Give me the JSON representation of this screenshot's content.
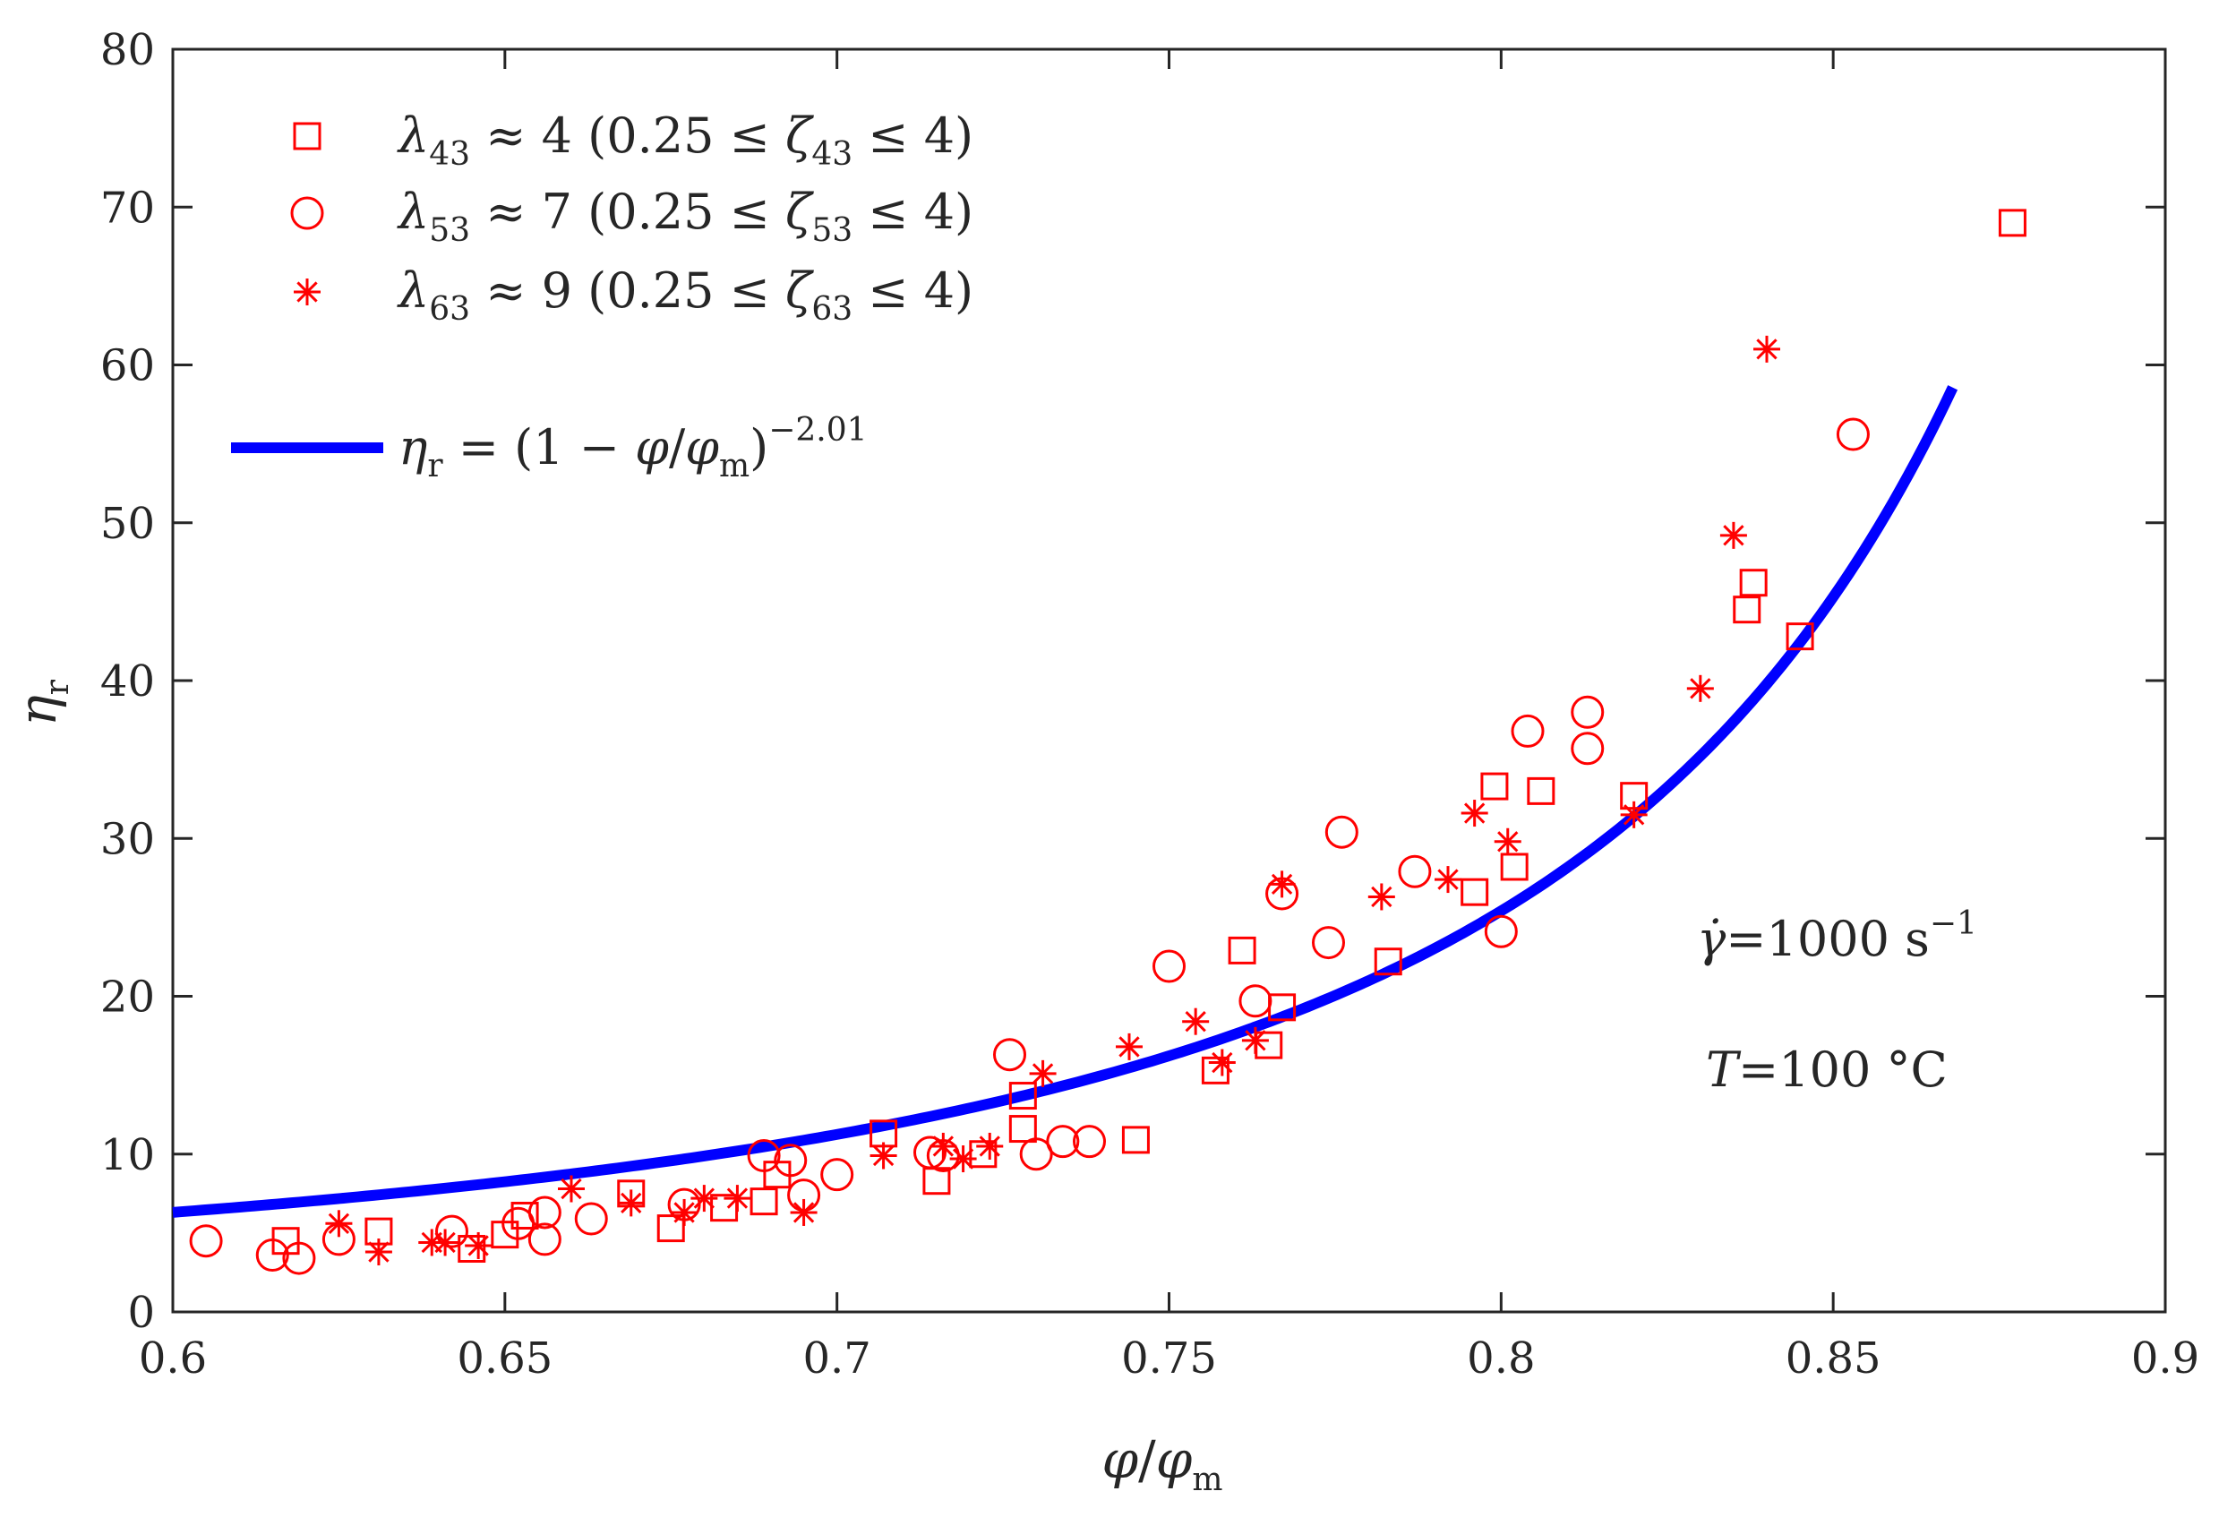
{
  "chart_data": {
    "type": "scatter",
    "xlabel": "φ/φm",
    "ylabel": "ηr",
    "xlim": [
      0.6,
      0.9
    ],
    "ylim": [
      0,
      80
    ],
    "xticks": [
      0.6,
      0.65,
      0.7,
      0.75,
      0.8,
      0.85,
      0.9
    ],
    "yticks": [
      0,
      10,
      20,
      30,
      40,
      50,
      60,
      70,
      80
    ],
    "xtick_labels": [
      "0.6",
      "0.65",
      "0.7",
      "0.75",
      "0.8",
      "0.85",
      "0.9"
    ],
    "ytick_labels": [
      "0",
      "10",
      "20",
      "30",
      "40",
      "50",
      "60",
      "70",
      "80"
    ],
    "grid": false,
    "legend_position": "top-left",
    "colors": {
      "markers": "#ff0000",
      "fit_line": "#0000ff",
      "axes": "#262626"
    },
    "series": [
      {
        "name": "λ43 ≈ 4 (0.25 ≤ ζ43 ≤ 4)",
        "marker": "square",
        "points": [
          [
            0.617,
            4.5
          ],
          [
            0.631,
            5.1
          ],
          [
            0.645,
            4.0
          ],
          [
            0.65,
            4.9
          ],
          [
            0.653,
            6.1
          ],
          [
            0.669,
            7.5
          ],
          [
            0.675,
            5.3
          ],
          [
            0.683,
            6.6
          ],
          [
            0.689,
            7.0
          ],
          [
            0.691,
            8.7
          ],
          [
            0.707,
            11.3
          ],
          [
            0.715,
            8.3
          ],
          [
            0.722,
            10.0
          ],
          [
            0.728,
            13.7
          ],
          [
            0.728,
            11.6
          ],
          [
            0.745,
            10.9
          ],
          [
            0.757,
            15.3
          ],
          [
            0.761,
            22.9
          ],
          [
            0.765,
            16.9
          ],
          [
            0.767,
            19.3
          ],
          [
            0.783,
            22.2
          ],
          [
            0.796,
            26.6
          ],
          [
            0.799,
            33.3
          ],
          [
            0.802,
            28.2
          ],
          [
            0.806,
            33.0
          ],
          [
            0.82,
            32.7
          ],
          [
            0.837,
            44.5
          ],
          [
            0.838,
            46.2
          ],
          [
            0.845,
            42.8
          ],
          [
            0.877,
            69.0
          ]
        ]
      },
      {
        "name": "λ53 ≈ 7 (0.25 ≤ ζ53 ≤ 4)",
        "marker": "circle",
        "points": [
          [
            0.605,
            4.5
          ],
          [
            0.615,
            3.6
          ],
          [
            0.619,
            3.4
          ],
          [
            0.625,
            4.6
          ],
          [
            0.642,
            5.1
          ],
          [
            0.652,
            5.6
          ],
          [
            0.656,
            4.6
          ],
          [
            0.656,
            6.3
          ],
          [
            0.663,
            5.9
          ],
          [
            0.677,
            6.8
          ],
          [
            0.689,
            9.9
          ],
          [
            0.693,
            9.6
          ],
          [
            0.695,
            7.4
          ],
          [
            0.7,
            8.7
          ],
          [
            0.714,
            10.1
          ],
          [
            0.716,
            9.9
          ],
          [
            0.726,
            16.3
          ],
          [
            0.73,
            10.0
          ],
          [
            0.734,
            10.8
          ],
          [
            0.738,
            10.8
          ],
          [
            0.75,
            21.9
          ],
          [
            0.763,
            19.7
          ],
          [
            0.767,
            26.5
          ],
          [
            0.774,
            23.4
          ],
          [
            0.776,
            30.4
          ],
          [
            0.787,
            27.9
          ],
          [
            0.8,
            24.1
          ],
          [
            0.804,
            36.8
          ],
          [
            0.813,
            38.0
          ],
          [
            0.813,
            35.7
          ],
          [
            0.853,
            55.6
          ]
        ]
      },
      {
        "name": "λ63 ≈ 9 (0.25 ≤ ζ63 ≤ 4)",
        "marker": "asterisk",
        "points": [
          [
            0.625,
            5.6
          ],
          [
            0.631,
            3.8
          ],
          [
            0.639,
            4.4
          ],
          [
            0.641,
            4.4
          ],
          [
            0.646,
            4.2
          ],
          [
            0.66,
            7.8
          ],
          [
            0.669,
            6.9
          ],
          [
            0.677,
            6.3
          ],
          [
            0.68,
            7.2
          ],
          [
            0.685,
            7.2
          ],
          [
            0.695,
            6.3
          ],
          [
            0.707,
            9.9
          ],
          [
            0.716,
            10.5
          ],
          [
            0.719,
            9.7
          ],
          [
            0.723,
            10.5
          ],
          [
            0.731,
            15.1
          ],
          [
            0.744,
            16.8
          ],
          [
            0.754,
            18.4
          ],
          [
            0.758,
            15.8
          ],
          [
            0.763,
            17.2
          ],
          [
            0.767,
            27.1
          ],
          [
            0.782,
            26.3
          ],
          [
            0.792,
            27.4
          ],
          [
            0.796,
            31.6
          ],
          [
            0.801,
            29.8
          ],
          [
            0.82,
            31.5
          ],
          [
            0.83,
            39.5
          ],
          [
            0.835,
            49.2
          ],
          [
            0.84,
            61.0
          ]
        ]
      }
    ],
    "fit": {
      "name": "ηr = (1 − φ/φm)^−2.01",
      "exponent": -2.01,
      "x_start": 0.6,
      "x_end": 0.868
    },
    "annotations": [
      "γ̇=1000 s⁻¹",
      "T=100 °C"
    ]
  },
  "legend": {
    "items": [
      {
        "symbol": "λ",
        "sub": "43",
        "text": " ≈ 4 (0.25 ≤ ",
        "zeta": "ζ",
        "zsub": "43",
        "tail": " ≤ 4)"
      },
      {
        "symbol": "λ",
        "sub": "53",
        "text": " ≈ 7 (0.25 ≤ ",
        "zeta": "ζ",
        "zsub": "53",
        "tail": " ≤ 4)"
      },
      {
        "symbol": "λ",
        "sub": "63",
        "text": " ≈ 9 (0.25 ≤ ",
        "zeta": "ζ",
        "zsub": "63",
        "tail": " ≤ 4)"
      }
    ],
    "fit": {
      "eta": "η",
      "eta_sub": "r",
      "mid": " = (1 − ",
      "phi1": "φ",
      "slash": "/",
      "phi2": "φ",
      "phi2_sub": "m",
      "close": ")",
      "exp": "−2.01"
    }
  },
  "axis": {
    "xlabel": {
      "phi1": "φ",
      "slash": "/",
      "phi2": "φ",
      "sub": "m"
    },
    "ylabel": {
      "eta": "η",
      "sub": "r"
    }
  },
  "annotation": {
    "gamma": "γ̇",
    "rate": "=1000 s",
    "rate_exp": "−1",
    "temp_symbol": "T",
    "temp": "=100 °C"
  }
}
